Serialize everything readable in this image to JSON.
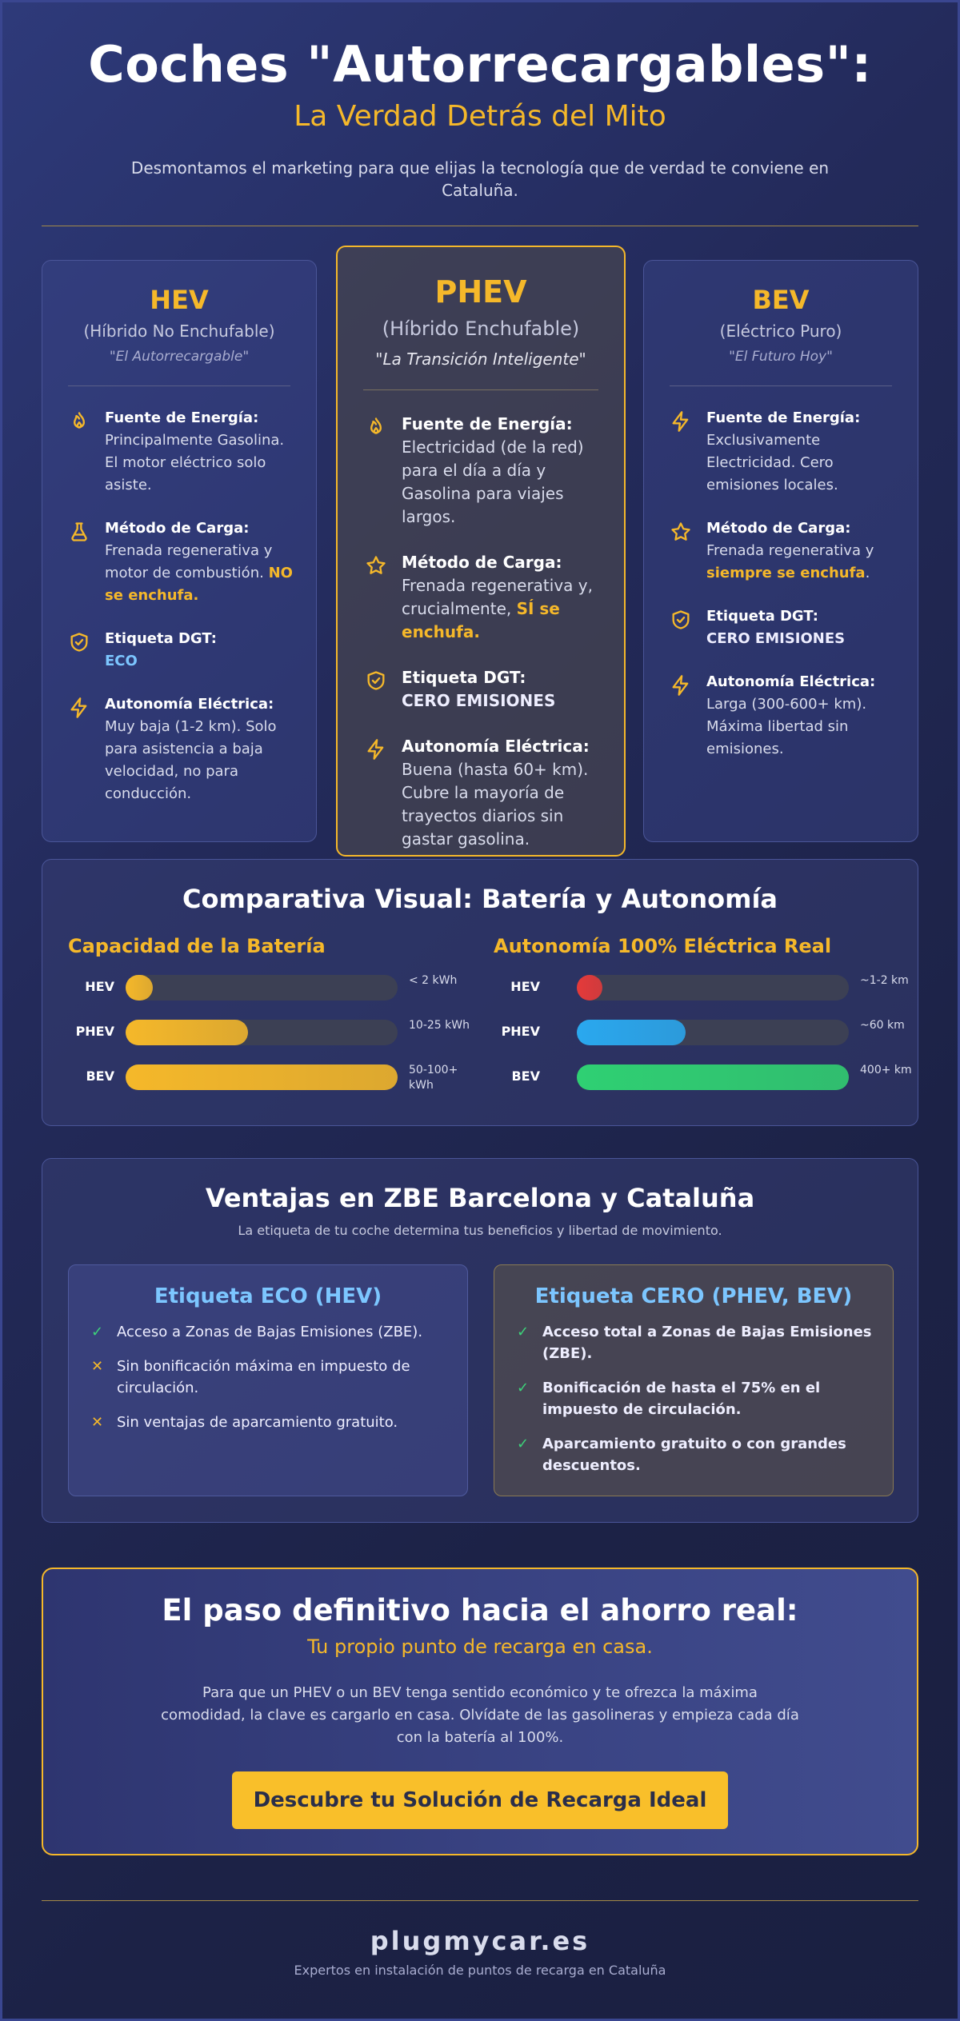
{
  "header": {
    "title": "Coches \"Autorrecargables\":",
    "subtitle": "La Verdad Detrás del Mito",
    "description": "Desmontamos el marketing para que elijas la tecnología que de verdad te conviene en Cataluña."
  },
  "cards": [
    {
      "title": "HEV",
      "subtitle": "(Híbrido No Enchufable)",
      "quote": "\"El Autorrecargable\"",
      "features": [
        {
          "icon": "flame-icon",
          "label": "Fuente de Energía:",
          "text": "Principalmente Gasolina. El motor eléctrico solo asiste.",
          "highlight": ""
        },
        {
          "icon": "flask-icon",
          "label": "Método de Carga:",
          "text": "Frenada regenerativa y motor de combustión.",
          "highlight": "NO se enchufa."
        },
        {
          "icon": "shield-check-icon",
          "label": "Etiqueta DGT:",
          "text": "",
          "highlight": "ECO"
        },
        {
          "icon": "bolt-icon",
          "label": "Autonomía Eléctrica:",
          "text": "Muy baja (1-2 km). Solo para asistencia a baja velocidad, no para conducción.",
          "highlight": ""
        }
      ]
    },
    {
      "title": "PHEV",
      "subtitle": "(Híbrido Enchufable)",
      "quote": "\"La Transición Inteligente\"",
      "features": [
        {
          "icon": "flame-icon",
          "label": "Fuente de Energía:",
          "text": "Electricidad (de la red) para el día a día y Gasolina para viajes largos.",
          "highlight": ""
        },
        {
          "icon": "star-icon",
          "label": "Método de Carga:",
          "text": "Frenada regenerativa y, crucialmente,",
          "highlight": "SÍ se enchufa."
        },
        {
          "icon": "shield-check-icon",
          "label": "Etiqueta DGT:",
          "text": "",
          "highlight": "CERO EMISIONES"
        },
        {
          "icon": "bolt-icon",
          "label": "Autonomía Eléctrica:",
          "text": "Buena (hasta 60+ km). Cubre la mayoría de trayectos diarios sin gastar gasolina.",
          "highlight": ""
        }
      ]
    },
    {
      "title": "BEV",
      "subtitle": "(Eléctrico Puro)",
      "quote": "\"El Futuro Hoy\"",
      "features": [
        {
          "icon": "bolt-icon",
          "label": "Fuente de Energía:",
          "text": "Exclusivamente Electricidad. Cero emisiones locales.",
          "highlight": ""
        },
        {
          "icon": "star-icon",
          "label": "Método de Carga:",
          "text": "Frenada regenerativa y",
          "highlight": "siempre se enchufa",
          "tail": "."
        },
        {
          "icon": "shield-check-icon",
          "label": "Etiqueta DGT:",
          "text": "",
          "highlight": "CERO EMISIONES"
        },
        {
          "icon": "bolt-icon",
          "label": "Autonomía Eléctrica:",
          "text": "Larga (300-600+ km). Máxima libertad sin emisiones.",
          "highlight": ""
        }
      ]
    }
  ],
  "comparison": {
    "title": "Comparativa Visual: Batería y Autonomía",
    "battery": {
      "heading": "Capacidad de la Batería",
      "rows": [
        {
          "label": "HEV",
          "value_text": "< 2 kWh",
          "fill": 0.1,
          "color": "#f5b82a"
        },
        {
          "label": "PHEV",
          "value_text": "10-25 kWh",
          "fill": 0.45,
          "color": "#f5b82a"
        },
        {
          "label": "BEV",
          "value_text": "50-100+ kWh",
          "fill": 1.0,
          "color": "#f5b82a"
        }
      ]
    },
    "range": {
      "heading": "Autonomía 100% Eléctrica Real",
      "rows": [
        {
          "label": "HEV",
          "value_text": "~1-2 km",
          "fill": 0.05,
          "color": "#e53a3a"
        },
        {
          "label": "PHEV",
          "value_text": "~60 km",
          "fill": 0.4,
          "color": "#2aa8ef"
        },
        {
          "label": "BEV",
          "value_text": "400+ km",
          "fill": 1.0,
          "color": "#2fd073"
        }
      ]
    }
  },
  "zbe": {
    "title": "Ventajas en ZBE Barcelona y Cataluña",
    "subtitle": "La etiqueta de tu coche determina tus beneficios y libertad de movimiento.",
    "eco": {
      "title": "Etiqueta ECO (HEV)",
      "items": [
        {
          "mark": "✓",
          "type": "ok",
          "text": "Acceso a Zonas de Bajas Emisiones (ZBE)."
        },
        {
          "mark": "✕",
          "type": "no",
          "text": "Sin bonificación máxima en impuesto de circulación."
        },
        {
          "mark": "✕",
          "type": "no",
          "text": "Sin ventajas de aparcamiento gratuito."
        }
      ]
    },
    "cero": {
      "title": "Etiqueta CERO (PHEV, BEV)",
      "items": [
        {
          "mark": "✓",
          "type": "ok",
          "text": "Acceso total a Zonas de Bajas Emisiones (ZBE)."
        },
        {
          "mark": "✓",
          "type": "ok",
          "text": "Bonificación de hasta el 75% en el impuesto de circulación."
        },
        {
          "mark": "✓",
          "type": "ok",
          "text": "Aparcamiento gratuito o con grandes descuentos."
        }
      ]
    }
  },
  "cta": {
    "title": "El paso definitivo hacia el ahorro real:",
    "subtitle": "Tu propio punto de recarga en casa.",
    "description": "Para que un PHEV o un BEV tenga sentido económico y te ofrezca la máxima comodidad, la clave es cargarlo en casa. Olvídate de las gasolineras y empieza cada día con la batería al 100%.",
    "button": "Descubre tu Solución de Recarga Ideal"
  },
  "footer": {
    "brand": "plugmycar.es",
    "tagline": "Expertos en instalación de puntos de recarga en Cataluña"
  },
  "colors": {
    "accent": "#f5b82a",
    "eco_blue": "#7cc6ff",
    "ok_green": "#3dd47a"
  }
}
